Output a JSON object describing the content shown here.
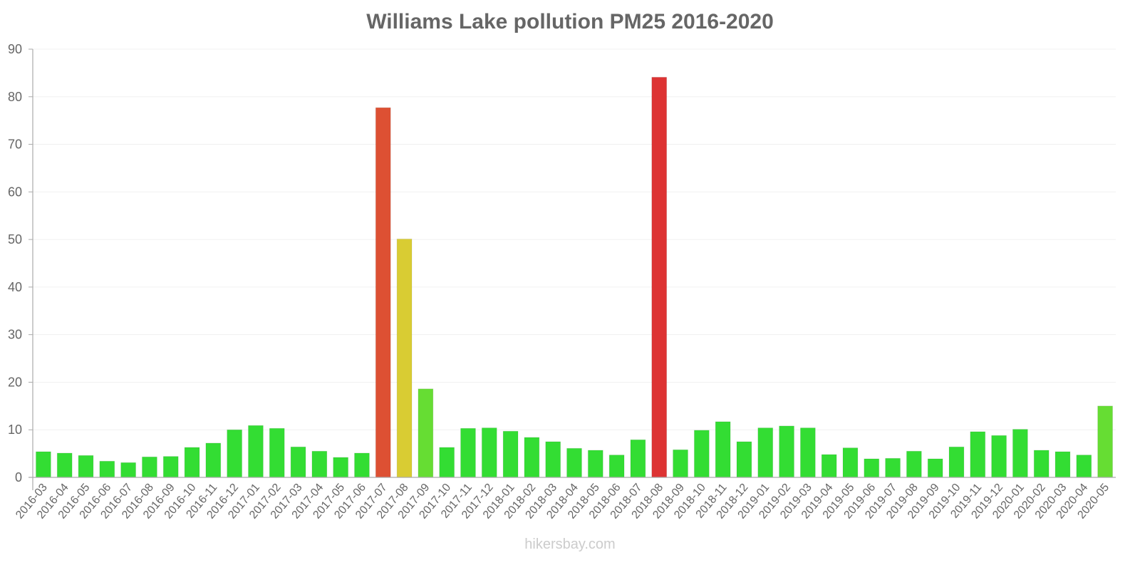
{
  "title": "Williams Lake pollution PM25 2016-2020",
  "footer": "hikersbay.com",
  "colors": {
    "good": "#33dd33",
    "moderate_green": "#66dd33",
    "moderate_yellow": "#d9cc33",
    "unhealthy_orange": "#dd5033",
    "unhealthy_red": "#dd3333",
    "text": "#666666",
    "axis": "#aaaaaa",
    "grid": "#f0f0f0"
  },
  "chart_data": {
    "type": "bar",
    "title": "Williams Lake pollution PM25 2016-2020",
    "xlabel": "",
    "ylabel": "",
    "ylim": [
      0,
      90
    ],
    "yticks": [
      0,
      10,
      20,
      30,
      40,
      50,
      60,
      70,
      80,
      90
    ],
    "grid": true,
    "legend": null,
    "categories": [
      "2016-03",
      "2016-04",
      "2016-05",
      "2016-06",
      "2016-07",
      "2016-08",
      "2016-09",
      "2016-10",
      "2016-11",
      "2016-12",
      "2017-01",
      "2017-02",
      "2017-03",
      "2017-04",
      "2017-05",
      "2017-06",
      "2017-07",
      "2017-08",
      "2017-09",
      "2017-10",
      "2017-11",
      "2017-12",
      "2018-01",
      "2018-02",
      "2018-03",
      "2018-04",
      "2018-05",
      "2018-06",
      "2018-07",
      "2018-08",
      "2018-09",
      "2018-10",
      "2018-11",
      "2018-12",
      "2019-01",
      "2019-02",
      "2019-03",
      "2019-04",
      "2019-05",
      "2019-06",
      "2019-07",
      "2019-08",
      "2019-09",
      "2019-10",
      "2019-11",
      "2019-12",
      "2020-01",
      "2020-02",
      "2020-03",
      "2020-04",
      "2020-05"
    ],
    "values": [
      5.4,
      5.1,
      4.6,
      3.4,
      3.1,
      4.3,
      4.4,
      6.3,
      7.2,
      10.0,
      10.9,
      10.3,
      6.4,
      5.5,
      4.2,
      5.1,
      77.7,
      50.1,
      18.6,
      6.3,
      10.3,
      10.4,
      9.7,
      8.4,
      7.5,
      6.1,
      5.7,
      4.7,
      7.9,
      84.1,
      5.8,
      9.9,
      11.7,
      7.5,
      10.4,
      10.8,
      10.4,
      4.8,
      6.2,
      3.9,
      4.0,
      5.5,
      3.9,
      6.4,
      9.6,
      8.8,
      10.1,
      5.7,
      5.4,
      4.7,
      15.0
    ],
    "bar_colors": [
      "#33dd33",
      "#33dd33",
      "#33dd33",
      "#33dd33",
      "#33dd33",
      "#33dd33",
      "#33dd33",
      "#33dd33",
      "#33dd33",
      "#33dd33",
      "#33dd33",
      "#33dd33",
      "#33dd33",
      "#33dd33",
      "#33dd33",
      "#33dd33",
      "#dd5033",
      "#d9cc33",
      "#66dd33",
      "#33dd33",
      "#33dd33",
      "#33dd33",
      "#33dd33",
      "#33dd33",
      "#33dd33",
      "#33dd33",
      "#33dd33",
      "#33dd33",
      "#33dd33",
      "#dd3333",
      "#33dd33",
      "#33dd33",
      "#33dd33",
      "#33dd33",
      "#33dd33",
      "#33dd33",
      "#33dd33",
      "#33dd33",
      "#33dd33",
      "#33dd33",
      "#33dd33",
      "#33dd33",
      "#33dd33",
      "#33dd33",
      "#33dd33",
      "#33dd33",
      "#33dd33",
      "#33dd33",
      "#33dd33",
      "#33dd33",
      "#66dd33"
    ]
  }
}
